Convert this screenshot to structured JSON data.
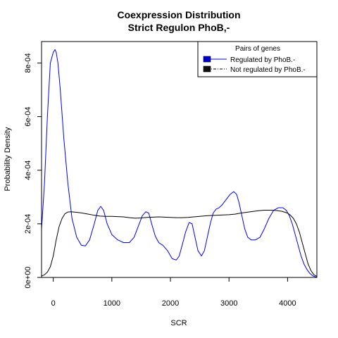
{
  "chart_data": {
    "type": "line",
    "title": "Coexpression Distribution",
    "subtitle": "Strict Regulon PhoB,-",
    "xlabel": "SCR",
    "ylabel": "Probability Density",
    "xlim": [
      -200,
      4500
    ],
    "ylim": [
      0,
      0.00088
    ],
    "x_ticks": [
      0,
      1000,
      2000,
      3000,
      4000
    ],
    "x_tick_labels": [
      "0",
      "1000",
      "2000",
      "3000",
      "4000"
    ],
    "y_ticks": [
      0,
      0.0002,
      0.0004,
      0.0006,
      0.0008
    ],
    "y_tick_labels": [
      "0e+00",
      "2e-04",
      "4e-04",
      "6e-04",
      "8e-04"
    ],
    "legend": {
      "title": "Pairs of genes",
      "position": "top-right",
      "entries": [
        {
          "label": "Regulated by  PhoB.-",
          "color": "#0000ff",
          "swatch": "#0000cc"
        },
        {
          "label": "Not regulated by  PhoB.-",
          "color": "#000000",
          "swatch": "#111111"
        }
      ]
    },
    "series": [
      {
        "color": "#0000ff",
        "x": [
          -200,
          -150,
          -100,
          -50,
          0,
          30,
          50,
          80,
          120,
          180,
          250,
          320,
          400,
          480,
          550,
          620,
          700,
          760,
          810,
          860,
          920,
          1000,
          1100,
          1200,
          1300,
          1380,
          1450,
          1520,
          1580,
          1630,
          1680,
          1740,
          1800,
          1870,
          1950,
          2030,
          2100,
          2150,
          2200,
          2260,
          2320,
          2370,
          2420,
          2470,
          2530,
          2580,
          2630,
          2680,
          2730,
          2780,
          2830,
          2880,
          2950,
          3020,
          3080,
          3130,
          3170,
          3220,
          3270,
          3320,
          3380,
          3450,
          3530,
          3600,
          3680,
          3760,
          3840,
          3920,
          3980,
          4030,
          4080,
          4130,
          4180,
          4230,
          4280,
          4330,
          4380,
          4430,
          4480,
          4500
        ],
        "y": [
          0.00018,
          0.00035,
          0.0006,
          0.0008,
          0.00084,
          0.00085,
          0.00084,
          0.0008,
          0.0007,
          0.00052,
          0.00035,
          0.00022,
          0.00015,
          0.00012,
          0.000118,
          0.00014,
          0.0002,
          0.00025,
          0.000265,
          0.00025,
          0.0002,
          0.00016,
          0.00014,
          0.00013,
          0.00013,
          0.00015,
          0.00019,
          0.00023,
          0.000245,
          0.00024,
          0.0002,
          0.000155,
          0.00013,
          0.00012,
          0.0001,
          7e-05,
          6.5e-05,
          8e-05,
          0.00012,
          0.00017,
          0.000205,
          0.0002,
          0.00015,
          0.0001,
          8e-05,
          0.0001,
          0.00015,
          0.0002,
          0.00024,
          0.000255,
          0.00026,
          0.00027,
          0.00029,
          0.00031,
          0.00032,
          0.00031,
          0.00028,
          0.00023,
          0.00018,
          0.00015,
          0.00014,
          0.00014,
          0.00015,
          0.00018,
          0.00022,
          0.00025,
          0.00026,
          0.00026,
          0.00025,
          0.00023,
          0.0002,
          0.00016,
          0.00012,
          8e-05,
          5e-05,
          3e-05,
          1.5e-05,
          6e-06,
          2e-06,
          1e-06
        ]
      },
      {
        "color": "#000000",
        "x": [
          -200,
          -150,
          -100,
          -50,
          0,
          50,
          100,
          150,
          200,
          250,
          300,
          400,
          500,
          600,
          700,
          800,
          900,
          1000,
          1100,
          1200,
          1300,
          1400,
          1500,
          1600,
          1700,
          1800,
          1900,
          2000,
          2100,
          2200,
          2300,
          2400,
          2500,
          2600,
          2700,
          2800,
          2900,
          3000,
          3100,
          3200,
          3300,
          3400,
          3500,
          3600,
          3700,
          3800,
          3900,
          4000,
          4050,
          4100,
          4150,
          4200,
          4250,
          4300,
          4350,
          4400,
          4450,
          4500
        ],
        "y": [
          5e-06,
          1e-05,
          2e-05,
          4e-05,
          8e-05,
          0.00014,
          0.00019,
          0.00022,
          0.000238,
          0.000244,
          0.000245,
          0.000243,
          0.00024,
          0.000236,
          0.000232,
          0.000229,
          0.000228,
          0.000228,
          0.000227,
          0.000226,
          0.000223,
          0.000221,
          0.000222,
          0.000224,
          0.000225,
          0.000226,
          0.000225,
          0.000224,
          0.000223,
          0.000223,
          0.000224,
          0.000226,
          0.000228,
          0.00023,
          0.000231,
          0.000232,
          0.000233,
          0.000234,
          0.000236,
          0.00024,
          0.000243,
          0.000246,
          0.000249,
          0.000251,
          0.000251,
          0.00025,
          0.000247,
          0.00024,
          0.000232,
          0.00022,
          0.0002,
          0.00017,
          0.00013,
          9e-05,
          5e-05,
          2.5e-05,
          1e-05,
          4e-06
        ]
      }
    ]
  }
}
